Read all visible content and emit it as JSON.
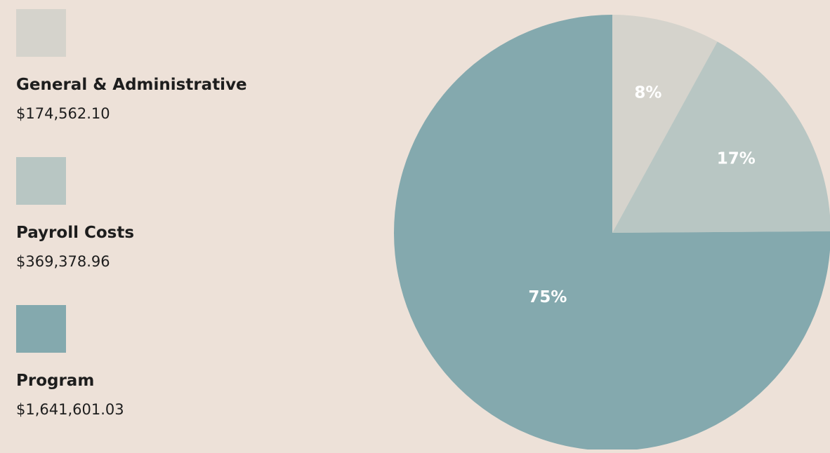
{
  "chart_data": {
    "type": "pie",
    "title": "",
    "slices": [
      {
        "label": "General & Administrative",
        "amount": "$174,562.10",
        "value": 174562.1,
        "percent_label": "8%",
        "color": "#d5d3cc"
      },
      {
        "label": "Payroll Costs",
        "amount": "$369,378.96",
        "value": 369378.96,
        "percent_label": "17%",
        "color": "#b8c6c3"
      },
      {
        "label": "Program",
        "amount": "$1,641,601.03",
        "value": 1641601.03,
        "percent_label": "75%",
        "color": "#84a9ae"
      }
    ],
    "legend_position": "left"
  },
  "colors": {
    "background": "#ede1d8",
    "text": "#1d1d1d",
    "slice_text": "#ffffff"
  }
}
